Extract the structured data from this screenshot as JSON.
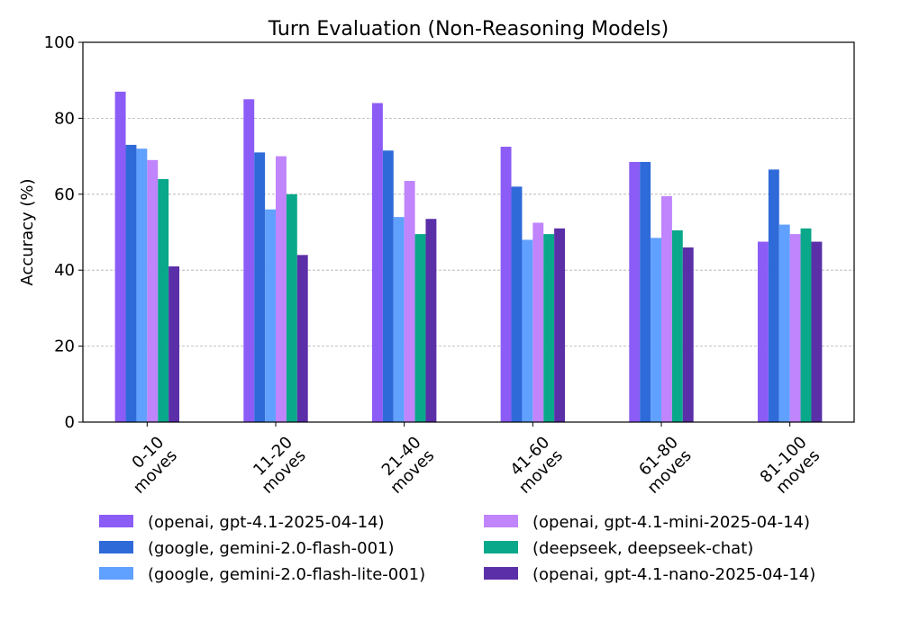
{
  "chart_data": {
    "type": "bar",
    "title": "Turn Evaluation (Non-Reasoning Models)",
    "xlabel": "",
    "ylabel": "Accuracy (%)",
    "ylim": [
      0,
      100
    ],
    "yticks": [
      0,
      20,
      40,
      60,
      80,
      100
    ],
    "grid": "y-dashed",
    "legend_placement": "bottom",
    "categories": [
      "0-10\nmoves",
      "11-20\nmoves",
      "21-40\nmoves",
      "41-60\nmoves",
      "61-80\nmoves",
      "81-100\nmoves"
    ],
    "series": [
      {
        "name": "(openai, gpt-4.1-2025-04-14)",
        "color": "#8b5cf6",
        "values": [
          87,
          85,
          84,
          72.5,
          68.5,
          47.5
        ]
      },
      {
        "name": "(google, gemini-2.0-flash-001)",
        "color": "#2f6ad9",
        "values": [
          73,
          71,
          71.5,
          62,
          68.5,
          66.5
        ]
      },
      {
        "name": "(google, gemini-2.0-flash-lite-001)",
        "color": "#60a0ff",
        "values": [
          72,
          56,
          54,
          48,
          48.5,
          52
        ]
      },
      {
        "name": "(openai, gpt-4.1-mini-2025-04-14)",
        "color": "#c084fc",
        "values": [
          69,
          70,
          63.5,
          52.5,
          59.5,
          49.5
        ]
      },
      {
        "name": "(deepseek, deepseek-chat)",
        "color": "#0aa88a",
        "values": [
          64,
          60,
          49.5,
          49.5,
          50.5,
          51
        ]
      },
      {
        "name": "(openai, gpt-4.1-nano-2025-04-14)",
        "color": "#5b2fa8",
        "values": [
          41,
          44,
          53.5,
          51,
          46,
          47.5
        ]
      }
    ]
  }
}
